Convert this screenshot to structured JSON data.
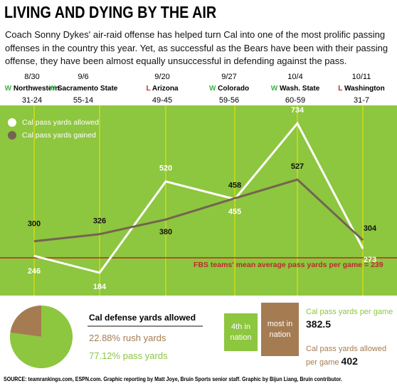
{
  "title": "LIVING AND DYING BY THE AIR",
  "intro": "Coach Sonny Dykes' air-raid offense has helped turn Cal into one of the most prolific passing offenses in the country this year. Yet, as successful as the Bears have been with their passing offense, they have been almost equally unsuccessful in defending against the pass.",
  "games": [
    {
      "result": "W",
      "opponent": "Northwestern",
      "score": "31-24"
    },
    {
      "result": "W",
      "opponent": "Sacramento State",
      "score": "55-14"
    },
    {
      "result": "L",
      "opponent": "Arizona",
      "score": "49-45"
    },
    {
      "result": "W",
      "opponent": "Colorado",
      "score": "59-56"
    },
    {
      "result": "W",
      "opponent": "Wash. State",
      "score": "60-59"
    },
    {
      "result": "L",
      "opponent": "Washington",
      "score": "31-7"
    }
  ],
  "chart_data": [
    {
      "type": "line",
      "categories": [
        "8/30",
        "9/6",
        "9/20",
        "9/27",
        "10/4",
        "10/11"
      ],
      "series": [
        {
          "name": "Cal pass yards allowed",
          "color": "#ffffff",
          "values": [
            246,
            184,
            520,
            455,
            734,
            273
          ]
        },
        {
          "name": "Cal pass yards gained",
          "color": "#75634f",
          "values": [
            300,
            326,
            380,
            458,
            527,
            304
          ]
        }
      ],
      "ylim": [
        100,
        800
      ],
      "reference_line": {
        "value": 239,
        "label": "FBS teams' mean average pass yards per game = 239",
        "color": "#c1272d"
      },
      "background": "#8dc63f"
    },
    {
      "type": "pie",
      "title": "Cal defense yards allowed",
      "categories": [
        "rush yards",
        "pass yards"
      ],
      "values": [
        22.88,
        77.12
      ],
      "value_labels": [
        "22.88%",
        "77.12%"
      ],
      "colors": [
        "#a57c52",
        "#8dc63f"
      ]
    }
  ],
  "stats": [
    {
      "rank": "4th in nation",
      "label": "Cal pass yards per game",
      "value": 382.5,
      "color": "#8dc63f"
    },
    {
      "rank": "most in nation",
      "label": "Cal pass yards allowed per game",
      "value": 402,
      "color": "#a57c52"
    }
  ],
  "source": "SOURCE: teamrankings.com, ESPN.com. Graphic reporting by Matt Joye, Bruin Sports senior staff. Graphic by Bijun Liang, Bruin contributor."
}
